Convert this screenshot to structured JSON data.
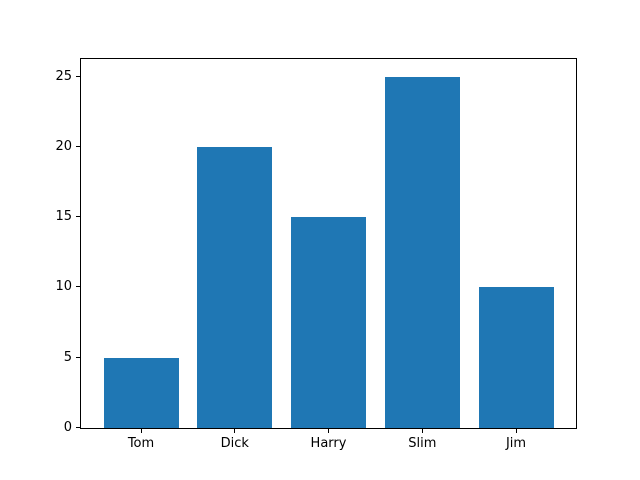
{
  "chart_data": {
    "type": "bar",
    "categories": [
      "Tom",
      "Dick",
      "Harry",
      "Slim",
      "Jim"
    ],
    "values": [
      5,
      20,
      15,
      25,
      10
    ],
    "title": "",
    "xlabel": "",
    "ylabel": "",
    "ylim": [
      0,
      26.25
    ],
    "xlim": [
      -0.64,
      4.64
    ],
    "yticks": [
      0,
      5,
      10,
      15,
      20,
      25
    ],
    "bar_width": 0.8,
    "bar_color": "#1f77b4",
    "axis_color": "#000000",
    "background_color": "#ffffff",
    "grid": false,
    "legend": null
  }
}
